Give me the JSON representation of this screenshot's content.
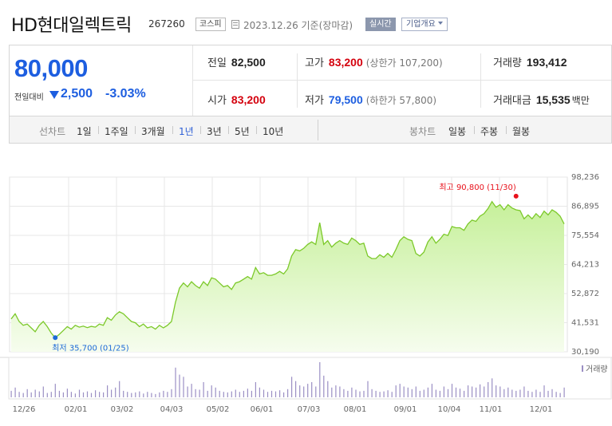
{
  "header": {
    "company_name": "HD현대일렉트릭",
    "ticker": "267260",
    "market_badge": "코스피",
    "date_text": "2023.12.26 기준(장마감)",
    "realtime_button": "실시간",
    "company_info_button": "기업개요"
  },
  "price": {
    "current": "80,000",
    "change_label": "전일대비",
    "change": "2,500",
    "change_pct": "-3.03%",
    "direction": "down"
  },
  "quote": {
    "prev_close": {
      "label": "전일",
      "value": "82,500"
    },
    "high": {
      "label": "고가",
      "value": "83,200",
      "sub": "(상한가 107,200)"
    },
    "volume": {
      "label": "거래량",
      "value": "193,412"
    },
    "open": {
      "label": "시가",
      "value": "83,200"
    },
    "low": {
      "label": "저가",
      "value": "79,500",
      "sub": "(하한가 57,800)"
    },
    "turnover": {
      "label": "거래대금",
      "value": "15,535",
      "unit": "백만"
    }
  },
  "tabs": {
    "line_label": "선차트",
    "line_periods": [
      "1일",
      "1주일",
      "3개월",
      "1년",
      "3년",
      "5년",
      "10년"
    ],
    "selected_period": "1년",
    "candle_label": "봉차트",
    "candle_periods": [
      "일봉",
      "주봉",
      "월봉"
    ]
  },
  "chart_data": {
    "type": "area",
    "title": "",
    "y_ticks": [
      30190,
      41531,
      52872,
      64213,
      75554,
      86895,
      98236
    ],
    "y_tick_labels": [
      "30,190",
      "41,531",
      "52,872",
      "64,213",
      "75,554",
      "86,895",
      "98,236"
    ],
    "ylim": [
      30190,
      98236
    ],
    "x_tick_labels": [
      "12/26",
      "02/01",
      "03/02",
      "04/03",
      "05/02",
      "06/01",
      "07/03",
      "08/01",
      "09/01",
      "10/04",
      "11/01",
      "12/01"
    ],
    "series": [
      {
        "values": [
          43000,
          45000,
          42000,
          40500,
          41000,
          39500,
          38000,
          40500,
          42000,
          40000,
          37500,
          35700,
          37000,
          38500,
          40000,
          39000,
          40500,
          39800,
          40200,
          39600,
          40100,
          39800,
          41000,
          40500,
          43500,
          42500,
          44500,
          45800,
          45000,
          43500,
          42000,
          41500,
          40000,
          41000,
          39500,
          40000,
          39000,
          40500,
          39500,
          40500,
          42000,
          49500,
          55000,
          57000,
          55500,
          57500,
          56000,
          55000,
          57500,
          56000,
          59000,
          58500,
          57000,
          55500,
          56000,
          54500,
          57000,
          57500,
          58500,
          59500,
          58500,
          63000,
          60500,
          61000,
          60000,
          60000,
          60500,
          61500,
          60500,
          62500,
          67500,
          70000,
          69500,
          70500,
          72000,
          73000,
          72000,
          80500,
          72000,
          73500,
          71000,
          72500,
          73500,
          72500,
          72000,
          74500,
          73500,
          72000,
          72500,
          67500,
          66500,
          66500,
          68000,
          67000,
          68500,
          67000,
          70000,
          73500,
          75000,
          74000,
          73500,
          68500,
          67500,
          69000,
          73000,
          75000,
          72500,
          74000,
          76000,
          75500,
          79000,
          78500,
          78500,
          77500,
          80000,
          81500,
          81000,
          83000,
          84000,
          86000,
          88700,
          86500,
          87500,
          85500,
          87500,
          86200,
          85500,
          85200,
          82000,
          83500,
          82000,
          84000,
          82500,
          85000,
          83500,
          85500,
          84500,
          83000,
          80000
        ]
      }
    ],
    "volume": [
      12,
      18,
      10,
      8,
      15,
      9,
      14,
      11,
      20,
      8,
      10,
      25,
      12,
      9,
      16,
      10,
      7,
      14,
      9,
      11,
      8,
      13,
      10,
      9,
      22,
      14,
      18,
      30,
      12,
      10,
      8,
      9,
      11,
      7,
      10,
      8,
      6,
      9,
      12,
      10,
      15,
      55,
      42,
      38,
      20,
      25,
      15,
      14,
      28,
      12,
      22,
      18,
      12,
      10,
      9,
      11,
      14,
      10,
      12,
      16,
      12,
      28,
      18,
      14,
      10,
      12,
      11,
      13,
      9,
      15,
      38,
      30,
      22,
      20,
      25,
      28,
      20,
      65,
      40,
      30,
      18,
      22,
      20,
      15,
      12,
      18,
      14,
      11,
      12,
      30,
      15,
      12,
      10,
      11,
      13,
      10,
      22,
      25,
      20,
      18,
      15,
      20,
      12,
      14,
      18,
      25,
      14,
      12,
      20,
      15,
      25,
      18,
      16,
      12,
      22,
      20,
      18,
      24,
      20,
      28,
      35,
      22,
      20,
      15,
      18,
      14,
      12,
      14,
      20,
      12,
      10,
      14,
      10,
      22,
      12,
      15,
      10,
      8,
      18
    ],
    "max_label": "최고 90,800 (11/30)",
    "min_label": "최저 35,700 (01/25)",
    "max_index": 126,
    "min_index": 11,
    "max_value": 90800,
    "min_value": 35700,
    "volume_legend": "거래량",
    "colors": {
      "line": "#7cc92a",
      "fill_top": "#c6f09a",
      "fill_bottom": "#f6fdee",
      "volume": "#9b8fc4",
      "max_dot": "#e8111b",
      "min_dot": "#1d6ad8",
      "grid": "#e7e7e7"
    }
  }
}
